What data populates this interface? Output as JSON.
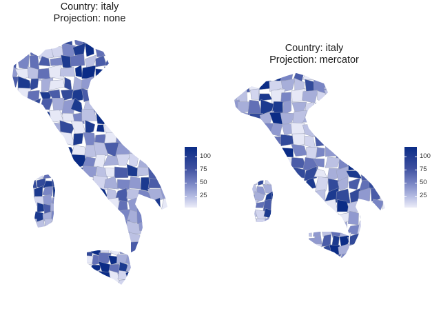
{
  "panels": [
    {
      "title_line1": "Country: italy",
      "title_line2": "Projection: none"
    },
    {
      "title_line1": "Country: italy",
      "title_line2": "Projection: mercator"
    }
  ],
  "legend": {
    "ticks": [
      "100",
      "75",
      "50",
      "25"
    ],
    "tick_values": [
      100,
      75,
      50,
      25
    ],
    "range": [
      8,
      115
    ],
    "colors": {
      "high": "#0b2c86",
      "mid": "#7985c4",
      "low": "#ecedf8",
      "border": "#9aa0b8"
    }
  },
  "map_data": {
    "type": "choropleth",
    "country": "italy",
    "fill_scale": "continuous blue",
    "regions_shown": [
      "mainland",
      "sardinia",
      "sicily"
    ]
  }
}
